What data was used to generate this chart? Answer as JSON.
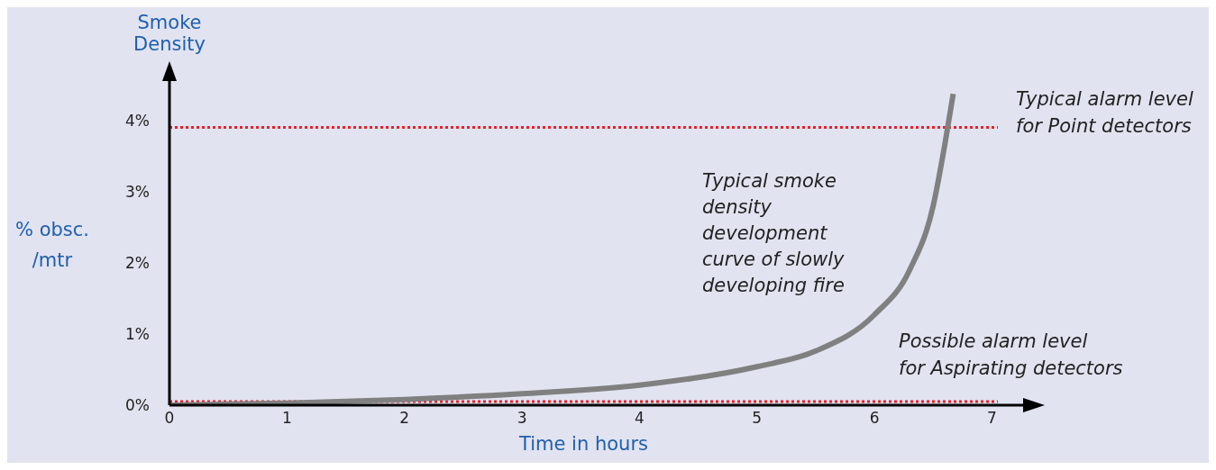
{
  "chart_data": {
    "type": "line",
    "title": "Smoke Density",
    "ylabel": "% obsc. /mtr",
    "xlabel": "Time in hours",
    "x": [
      0,
      1,
      2,
      3,
      4,
      5,
      5.5,
      6,
      6.3,
      6.5,
      6.6,
      6.67
    ],
    "series": [
      {
        "color": "#808080",
        "values": [
          0,
          0.03,
          0.08,
          0.16,
          0.28,
          0.54,
          0.76,
          1.27,
          1.9,
          2.8,
          3.67,
          4.37
        ]
      }
    ],
    "xlim": [
      0,
      7.05
    ],
    "xticks": [
      0,
      1,
      2,
      3,
      4,
      5,
      6,
      7
    ],
    "ylim": [
      0,
      4.6
    ],
    "yticks": [
      {
        "value": 0,
        "label": "0%"
      },
      {
        "value": 1,
        "label": "1%"
      },
      {
        "value": 2,
        "label": "2%"
      },
      {
        "value": 3,
        "label": "3%"
      },
      {
        "value": 4,
        "label": "4%"
      }
    ],
    "ref_lines": [
      {
        "axis": "y",
        "value": 3.9,
        "label": "Typical alarm level for Point detectors",
        "color": "#e8202a",
        "line_style": "dotted"
      },
      {
        "axis": "y",
        "value": 0.05,
        "label": "Possible alarm level for Aspirating detectors",
        "color": "#e8202a",
        "line_style": "dotted"
      }
    ],
    "annotations": [
      "Typical smoke density development curve of slowly developing fire"
    ],
    "grid": false,
    "legend": false,
    "marker": "none",
    "line_style": "solid"
  }
}
